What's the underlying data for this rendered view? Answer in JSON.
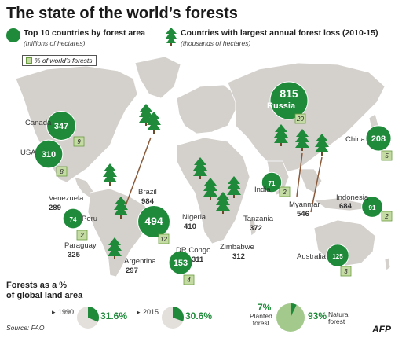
{
  "title": "The state of the world’s forests",
  "legend": {
    "area_title": "Top 10 countries by forest area",
    "area_unit": "(millions of hectares)",
    "loss_title": "Countries with largest annual forest loss (2010-15)",
    "loss_unit": "(thousands of hectares)",
    "pct_label": "% of world’s forests"
  },
  "colors": {
    "forest_green": "#1e8a3a",
    "land": "#d4d0cc",
    "ocean": "#ffffff",
    "pct_box_fill": "#c4dca3",
    "arrow": "#8a5a3a"
  },
  "chart_data": [
    {
      "type": "map",
      "series": [
        {
          "name": "Top 10 countries by forest area",
          "unit": "millions of hectares",
          "points": [
            {
              "country": "Russia",
              "area": 815,
              "pct": 20
            },
            {
              "country": "Brazil",
              "area": 494,
              "pct": 12
            },
            {
              "country": "Canada",
              "area": 347,
              "pct": 9
            },
            {
              "country": "USA",
              "area": 310,
              "pct": 8
            },
            {
              "country": "China",
              "area": 208,
              "pct": 5
            },
            {
              "country": "DR Congo",
              "area": 153,
              "pct": 4
            },
            {
              "country": "Australia",
              "area": 125,
              "pct": 3
            },
            {
              "country": "Indonesia",
              "area": 91,
              "pct": 2
            },
            {
              "country": "Peru",
              "area": 74,
              "pct": 2
            },
            {
              "country": "India",
              "area": 71,
              "pct": 2
            }
          ]
        },
        {
          "name": "Countries with largest annual forest loss (2010-15)",
          "unit": "thousands of hectares",
          "points": [
            {
              "country": "Brazil",
              "loss": 984
            },
            {
              "country": "Indonesia",
              "loss": 684
            },
            {
              "country": "Myanmar",
              "loss": 546
            },
            {
              "country": "Nigeria",
              "loss": 410
            },
            {
              "country": "Tanzania",
              "loss": 372
            },
            {
              "country": "Paraguay",
              "loss": 325
            },
            {
              "country": "Zimbabwe",
              "loss": 312
            },
            {
              "country": "DR Congo",
              "loss": 311
            },
            {
              "country": "Argentina",
              "loss": 297
            },
            {
              "country": "Venezuela",
              "loss": 289
            }
          ]
        }
      ]
    },
    {
      "type": "pie",
      "title": "Forests as a % of global land area",
      "slices": [
        {
          "year": "1990",
          "label": "31.6%",
          "value": 31.6
        },
        {
          "year": "2015",
          "label": "30.6%",
          "value": 30.6
        }
      ]
    },
    {
      "type": "pie",
      "slices": [
        {
          "label": "7%",
          "name": "Planted forest",
          "value": 7
        },
        {
          "label": "93%",
          "name": "Natural forest",
          "value": 93
        }
      ]
    }
  ],
  "bottom": {
    "title_line1": "Forests as a %",
    "title_line2": "of global land area",
    "source": "Source: FAO",
    "brand": "AFP",
    "planted_line1": "Planted",
    "planted_line2": "forest",
    "natural_line1": "Natural",
    "natural_line2": "forest"
  }
}
